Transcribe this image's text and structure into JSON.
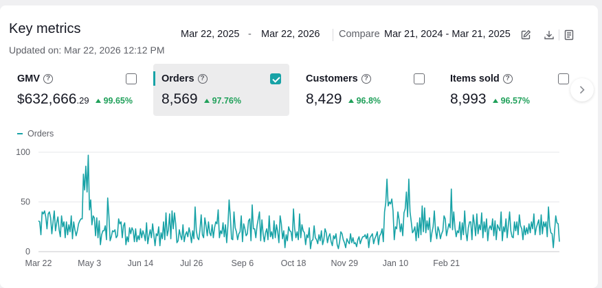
{
  "header": {
    "title": "Key metrics",
    "updated": "Updated on: Mar 22, 2026 12:12 PM",
    "date_start": "Mar 22, 2025",
    "date_separator": "-",
    "date_end": "Mar 22, 2026",
    "compare_label": "Compare",
    "compare_range": "Mar 21, 2024 - Mar 21, 2025"
  },
  "metrics": [
    {
      "name": "GMV",
      "currency": "$",
      "value": "632,666",
      "cents": ".29",
      "delta": "99.65%",
      "checked": false,
      "selected": false
    },
    {
      "name": "Orders",
      "currency": "",
      "value": "8,569",
      "cents": "",
      "delta": "97.76%",
      "checked": true,
      "selected": true
    },
    {
      "name": "Customers",
      "currency": "",
      "value": "8,429",
      "cents": "",
      "delta": "96.8%",
      "checked": false,
      "selected": false
    },
    {
      "name": "Items sold",
      "currency": "",
      "value": "8,993",
      "cents": "",
      "delta": "96.57%",
      "checked": false,
      "selected": false
    }
  ],
  "colors": {
    "accent": "#17a2a6",
    "positive": "#20a05a"
  },
  "chart_data": {
    "type": "line",
    "series": [
      {
        "name": "Orders",
        "values": [
          31,
          30,
          17,
          40,
          38,
          41,
          35,
          23,
          38,
          40,
          34,
          18,
          30,
          41,
          21,
          29,
          35,
          22,
          15,
          36,
          25,
          30,
          14,
          30,
          17,
          27,
          20,
          36,
          13,
          30,
          22,
          16,
          21,
          28,
          31,
          33,
          33,
          78,
          62,
          86,
          60,
          97,
          42,
          52,
          27,
          36,
          34,
          16,
          34,
          14,
          31,
          7,
          17,
          21,
          21,
          26,
          12,
          54,
          36,
          11,
          15,
          21,
          20,
          22,
          14,
          16,
          33,
          28,
          30,
          14,
          26,
          29,
          7,
          15,
          10,
          24,
          18,
          24,
          21,
          10,
          23,
          10,
          16,
          12,
          23,
          14,
          21,
          17,
          11,
          29,
          8,
          16,
          22,
          14,
          28,
          17,
          6,
          18,
          16,
          25,
          6,
          19,
          13,
          30,
          12,
          39,
          16,
          22,
          38,
          13,
          41,
          23,
          39,
          28,
          9,
          11,
          22,
          16,
          12,
          27,
          10,
          17,
          20,
          15,
          24,
          18,
          9,
          21,
          13,
          45,
          21,
          14,
          12,
          22,
          37,
          17,
          14,
          34,
          26,
          16,
          30,
          19,
          16,
          27,
          14,
          24,
          30,
          28,
          42,
          14,
          21,
          18,
          29,
          15,
          27,
          9,
          26,
          52,
          35,
          13,
          12,
          40,
          24,
          20,
          12,
          18,
          20,
          36,
          10,
          28,
          23,
          16,
          18,
          31,
          33,
          11,
          47,
          23,
          23,
          14,
          26,
          33,
          40,
          11,
          32,
          18,
          10,
          19,
          23,
          12,
          36,
          15,
          20,
          13,
          31,
          14,
          27,
          20,
          9,
          36,
          28,
          13,
          21,
          4,
          17,
          11,
          25,
          21,
          20,
          11,
          43,
          23,
          14,
          20,
          12,
          38,
          14,
          27,
          21,
          19,
          7,
          17,
          14,
          24,
          3,
          11,
          12,
          26,
          14,
          12,
          8,
          17,
          11,
          21,
          7,
          12,
          23,
          19,
          9,
          15,
          18,
          10,
          6,
          16,
          13,
          18,
          7,
          3,
          10,
          20,
          18,
          12,
          9,
          4,
          13,
          10,
          8,
          18,
          9,
          14,
          8,
          9,
          5,
          12,
          15,
          8,
          12,
          15,
          15,
          17,
          13,
          18,
          4,
          14,
          16,
          18,
          8,
          13,
          16,
          20,
          7,
          16,
          18,
          23,
          10,
          40,
          49,
          73,
          46,
          50,
          48,
          53,
          41,
          12,
          25,
          23,
          40,
          32,
          20,
          28,
          16,
          39,
          43,
          60,
          35,
          73,
          40,
          30,
          19,
          21,
          25,
          11,
          29,
          14,
          34,
          17,
          46,
          20,
          44,
          19,
          31,
          22,
          34,
          10,
          19,
          25,
          41,
          21,
          13,
          25,
          21,
          13,
          18,
          21,
          36,
          33,
          16,
          22,
          28,
          24,
          63,
          22,
          40,
          24,
          15,
          21,
          19,
          30,
          12,
          29,
          17,
          41,
          20,
          11,
          24,
          30,
          30,
          12,
          37,
          28,
          16,
          38,
          18,
          27,
          22,
          39,
          14,
          30,
          20,
          33,
          11,
          23,
          26,
          22,
          33,
          16,
          31,
          12,
          27,
          24,
          21,
          40,
          11,
          25,
          20,
          33,
          14,
          27,
          40,
          21,
          15,
          14,
          30,
          21,
          30,
          17,
          37,
          26,
          23,
          12,
          26,
          17,
          24,
          18,
          28,
          19,
          30,
          23,
          38,
          17,
          24,
          28,
          32,
          17,
          37,
          18,
          30,
          25,
          30,
          15,
          45,
          26,
          19,
          18,
          4,
          20,
          36,
          29,
          28,
          10
        ]
      }
    ],
    "x_ticks": [
      "Mar 22",
      "May 3",
      "Jun 14",
      "Jul 26",
      "Sep 6",
      "Oct 18",
      "Nov 29",
      "Jan 10",
      "Feb 21"
    ],
    "y_ticks": [
      0,
      50,
      100
    ],
    "ylim": [
      0,
      100
    ],
    "legend": "Orders"
  }
}
